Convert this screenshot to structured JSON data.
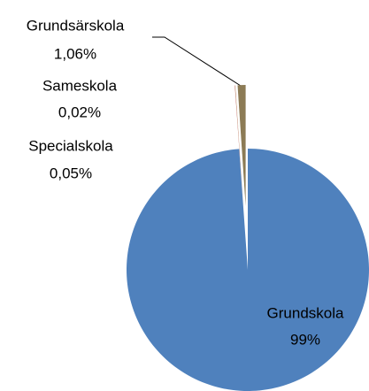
{
  "chart_data": {
    "type": "pie",
    "categories": [
      "Grundskola",
      "Specialskola",
      "Sameskola",
      "Grundsärskola"
    ],
    "values": [
      99,
      0.05,
      0.02,
      1.06
    ],
    "value_labels": [
      "99%",
      "0,05%",
      "0,02%",
      "1,06%"
    ],
    "colors": [
      "#4f81bd",
      "#c0504d",
      "#9bbb59",
      "#8c7b55"
    ]
  }
}
